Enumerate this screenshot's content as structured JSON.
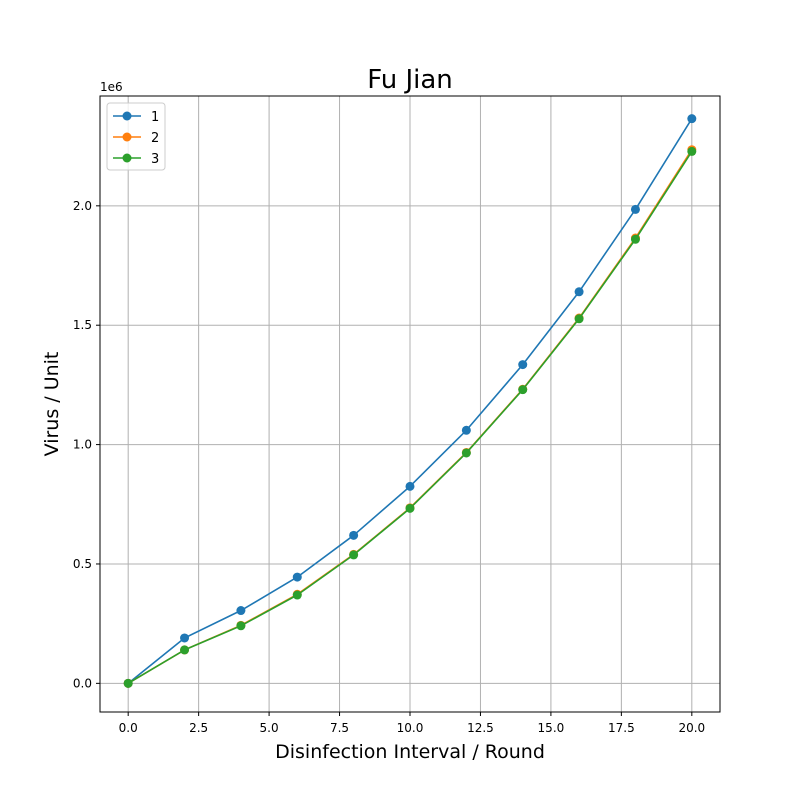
{
  "chart_data": {
    "type": "line",
    "title": "Fu Jian",
    "xlabel": "Disinfection Interval / Round",
    "ylabel": "Virus / Unit",
    "y_offset_label": "1e6",
    "y_multiplier": 1000000,
    "xlim": [
      -1.0,
      21.0
    ],
    "ylim": [
      -120000,
      2460000
    ],
    "x_ticks": [
      0.0,
      2.5,
      5.0,
      7.5,
      10.0,
      12.5,
      15.0,
      17.5,
      20.0
    ],
    "x_tick_labels": [
      "0.0",
      "2.5",
      "5.0",
      "7.5",
      "10.0",
      "12.5",
      "15.0",
      "17.5",
      "20.0"
    ],
    "y_ticks": [
      0,
      500000,
      1000000,
      1500000,
      2000000
    ],
    "y_tick_labels": [
      "0.0",
      "0.5",
      "1.0",
      "1.5",
      "2.0"
    ],
    "grid": true,
    "legend_position": "top-left",
    "x": [
      0,
      2,
      4,
      6,
      8,
      10,
      12,
      14,
      16,
      18,
      20
    ],
    "series": [
      {
        "name": "1",
        "color": "#1f77b4",
        "values": [
          0,
          190000,
          305000,
          445000,
          620000,
          825000,
          1060000,
          1335000,
          1640000,
          1985000,
          2365000
        ]
      },
      {
        "name": "2",
        "color": "#ff7f0e",
        "values": [
          0,
          140000,
          243000,
          373000,
          540000,
          735000,
          967000,
          1232000,
          1530000,
          1865000,
          2235000
        ]
      },
      {
        "name": "3",
        "color": "#2ca02c",
        "values": [
          0,
          140000,
          241000,
          370000,
          538000,
          733000,
          965000,
          1230000,
          1527000,
          1860000,
          2228000
        ]
      }
    ]
  }
}
